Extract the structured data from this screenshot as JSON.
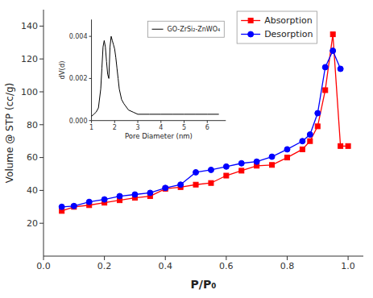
{
  "chart_data": [
    {
      "type": "line",
      "xlabel": "P/P₀",
      "ylabel": "Volume @ STP (cc/g)",
      "xlim": [
        0.0,
        1.05
      ],
      "ylim": [
        0,
        150
      ],
      "xticks": [
        {
          "value": 0.0,
          "label": "0.0"
        },
        0.2,
        0.4,
        0.6,
        0.8,
        {
          "value": 1.0,
          "label": "1.0"
        }
      ],
      "yticks": [
        20,
        40,
        60,
        80,
        100,
        120,
        140
      ],
      "legend": "upper right",
      "series": [
        {
          "name": "Absorption",
          "color": "red",
          "marker": "square",
          "x": [
            0.06,
            0.1,
            0.15,
            0.2,
            0.25,
            0.3,
            0.35,
            0.4,
            0.45,
            0.5,
            0.55,
            0.6,
            0.65,
            0.7,
            0.75,
            0.8,
            0.85,
            0.875,
            0.9,
            0.925,
            0.95,
            0.975,
            1.0
          ],
          "values": [
            27.5,
            30.0,
            31.0,
            32.5,
            34.0,
            35.5,
            36.5,
            41.0,
            42.0,
            43.5,
            44.5,
            49.0,
            52.0,
            55.0,
            55.5,
            60.0,
            65.0,
            70.0,
            79.0,
            101.0,
            135.0,
            67.0,
            67.0
          ]
        },
        {
          "name": "Desorption",
          "color": "blue",
          "marker": "circle",
          "x": [
            0.06,
            0.1,
            0.15,
            0.2,
            0.25,
            0.3,
            0.35,
            0.4,
            0.45,
            0.5,
            0.55,
            0.6,
            0.65,
            0.7,
            0.75,
            0.8,
            0.85,
            0.875,
            0.9,
            0.925,
            0.95,
            0.975
          ],
          "values": [
            30.0,
            30.5,
            33.0,
            34.5,
            36.5,
            37.5,
            38.5,
            41.5,
            43.5,
            51.0,
            52.5,
            54.5,
            56.5,
            57.5,
            60.5,
            65.0,
            70.0,
            74.0,
            87.0,
            115.0,
            125.0,
            114.0
          ]
        }
      ]
    },
    {
      "type": "line",
      "xlabel": "Pore Diameter (nm)",
      "ylabel": "dV(d)",
      "xlim": [
        1,
        6.8
      ],
      "ylim": [
        0.0,
        0.0048
      ],
      "xticks": [
        1,
        2,
        3,
        4,
        5,
        6
      ],
      "yticks": [
        {
          "value": 0.0,
          "label": "0.000"
        },
        {
          "value": 0.002,
          "label": "0.002"
        },
        {
          "value": 0.004,
          "label": "0.004"
        }
      ],
      "legend": "upper right",
      "series": [
        {
          "name": "GO-ZrSi₂-ZnWO₄",
          "color": "black",
          "x": [
            1.0,
            1.1,
            1.2,
            1.3,
            1.4,
            1.45,
            1.5,
            1.55,
            1.6,
            1.65,
            1.7,
            1.75,
            1.8,
            1.85,
            1.9,
            1.95,
            2.0,
            2.05,
            2.1,
            2.15,
            2.2,
            2.3,
            2.4,
            2.6,
            2.8,
            3.0,
            3.5,
            4.0,
            4.5,
            5.0,
            5.5,
            6.0,
            6.5
          ],
          "values": [
            0.0002,
            0.0003,
            0.0004,
            0.0006,
            0.0015,
            0.0025,
            0.0035,
            0.0038,
            0.0035,
            0.0028,
            0.0022,
            0.002,
            0.0035,
            0.004,
            0.0038,
            0.0036,
            0.0034,
            0.003,
            0.0025,
            0.002,
            0.0015,
            0.001,
            0.0008,
            0.0005,
            0.0004,
            0.0003,
            0.0003,
            0.0003,
            0.0003,
            0.0003,
            0.0003,
            0.0003,
            0.0003
          ]
        }
      ]
    }
  ]
}
